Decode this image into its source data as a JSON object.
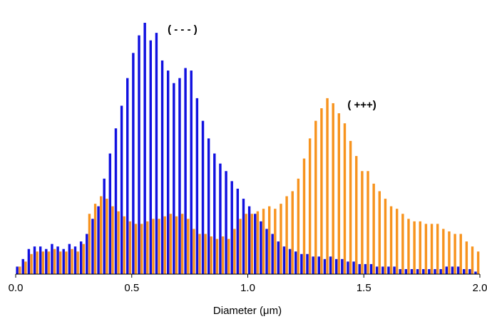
{
  "chart_data": {
    "type": "histogram",
    "xlabel": "Diameter (μm)",
    "bins": [
      0,
      0.025,
      0.05,
      0.075,
      0.1,
      0.125,
      0.15,
      0.175,
      0.2,
      0.225,
      0.25,
      0.275,
      0.3,
      0.325,
      0.35,
      0.375,
      0.4,
      0.425,
      0.45,
      0.475,
      0.5,
      0.525,
      0.55,
      0.575,
      0.6,
      0.625,
      0.65,
      0.675,
      0.7,
      0.725,
      0.75,
      0.775,
      0.8,
      0.825,
      0.85,
      0.875,
      0.9,
      0.925,
      0.95,
      0.975,
      1,
      1.025,
      1.05,
      1.075,
      1.1,
      1.125,
      1.15,
      1.175,
      1.2,
      1.225,
      1.25,
      1.275,
      1.3,
      1.325,
      1.35,
      1.375,
      1.4,
      1.425,
      1.45,
      1.475,
      1.5,
      1.525,
      1.55,
      1.575,
      1.6,
      1.625,
      1.65,
      1.675,
      1.7,
      1.725,
      1.75,
      1.775,
      1.8,
      1.825,
      1.85,
      1.875,
      1.9,
      1.925,
      1.95,
      1.975,
      2
    ],
    "series": [
      {
        "name": "( - - - )",
        "color": "#1010e0",
        "values": [
          3,
          6,
          10,
          11,
          11,
          10,
          12,
          11,
          10,
          12,
          11,
          13,
          16,
          22,
          27,
          38,
          48,
          58,
          67,
          78,
          88,
          95,
          100,
          93,
          96,
          85,
          81,
          76,
          78,
          82,
          81,
          70,
          61,
          54,
          48,
          44,
          41,
          37,
          34,
          30,
          27,
          24,
          21,
          18,
          16,
          13,
          11,
          10,
          9,
          8,
          8,
          7,
          7,
          6,
          7,
          6,
          6,
          5,
          5,
          4,
          4,
          4,
          3,
          3,
          3,
          3,
          2,
          2,
          2,
          2,
          2,
          2,
          2,
          2,
          3,
          3,
          3,
          2,
          2,
          1
        ]
      },
      {
        "name": "( +++)",
        "color": "#f7931e",
        "values": [
          3,
          5,
          8,
          9,
          9,
          9,
          10,
          9,
          9,
          10,
          9,
          12,
          24,
          28,
          31,
          30,
          27,
          25,
          23,
          21,
          20,
          20,
          21,
          22,
          22,
          23,
          24,
          23,
          24,
          22,
          18,
          16,
          16,
          15,
          14,
          15,
          14,
          18,
          22,
          24,
          24,
          25,
          26,
          27,
          26,
          28,
          31,
          33,
          38,
          46,
          54,
          61,
          66,
          70,
          68,
          64,
          60,
          53,
          47,
          41,
          41,
          36,
          33,
          30,
          27,
          26,
          24,
          22,
          21,
          21,
          20,
          20,
          20,
          18,
          17,
          16,
          16,
          13,
          11,
          9
        ]
      }
    ],
    "xlim": [
      0,
      2
    ],
    "xticks": [
      {
        "value": 0,
        "label": "0.0"
      },
      0.5,
      {
        "value": 1,
        "label": "1.0"
      },
      1.5,
      {
        "value": 2,
        "label": "2.0"
      }
    ],
    "ylim": [
      0,
      100
    ]
  }
}
